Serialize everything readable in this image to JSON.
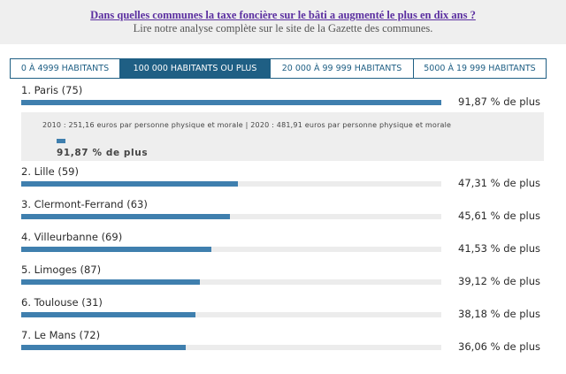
{
  "header": {
    "title": "Dans quelles communes la taxe foncière sur le bâti a augmenté le plus en dix ans ?",
    "subtitle": "Lire notre analyse complète sur le site de la Gazette des communes."
  },
  "tabs": [
    {
      "label": "0 À 4999 HABITANTS",
      "active": false
    },
    {
      "label": "100 000 HABITANTS OU PLUS",
      "active": true
    },
    {
      "label": "20 000 À 99 999 HABITANTS",
      "active": false
    },
    {
      "label": "5000 À 19 999 HABITANTS",
      "active": false
    }
  ],
  "colors": {
    "bar": "#3f7fae",
    "track": "#ececec",
    "active_tab": "#1f5f84",
    "title": "#5b2fa0"
  },
  "detail": {
    "text": "2010 : 251,16 euros par personne physique et morale | 2020 : 481,91 euros par personne physique et morale",
    "value_label": "91,87 % de plus"
  },
  "chart_data": {
    "type": "bar",
    "categories": [
      "1. Paris (75)",
      "2. Lille (59)",
      "3. Clermont-Ferrand (63)",
      "4. Villeurbanne (69)",
      "5. Limoges (87)",
      "6. Toulouse (31)",
      "7. Le Mans (72)"
    ],
    "values": [
      91.87,
      47.31,
      45.61,
      41.53,
      39.12,
      38.18,
      36.06
    ],
    "value_labels": [
      "91,87 % de plus",
      "47,31 % de plus",
      "45,61 % de plus",
      "41,53 % de plus",
      "39,12 % de plus",
      "38,18 % de plus",
      "36,06 % de plus"
    ],
    "max": 91.87
  }
}
